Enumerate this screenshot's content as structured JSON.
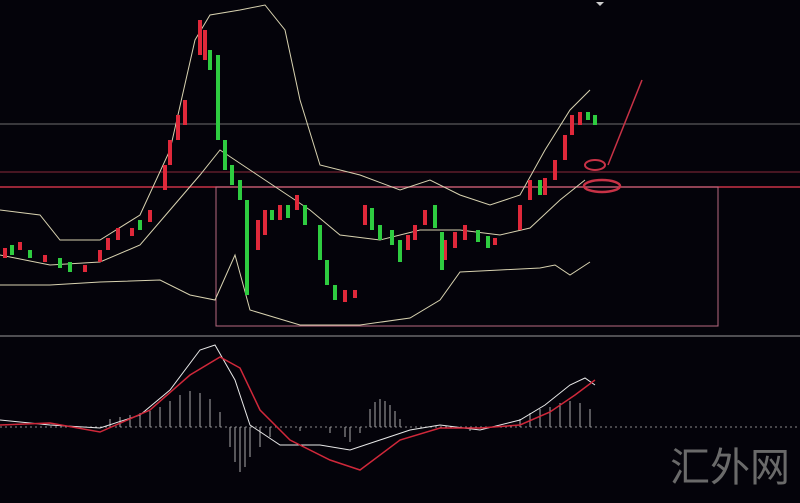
{
  "watermark": "汇外网"
}
